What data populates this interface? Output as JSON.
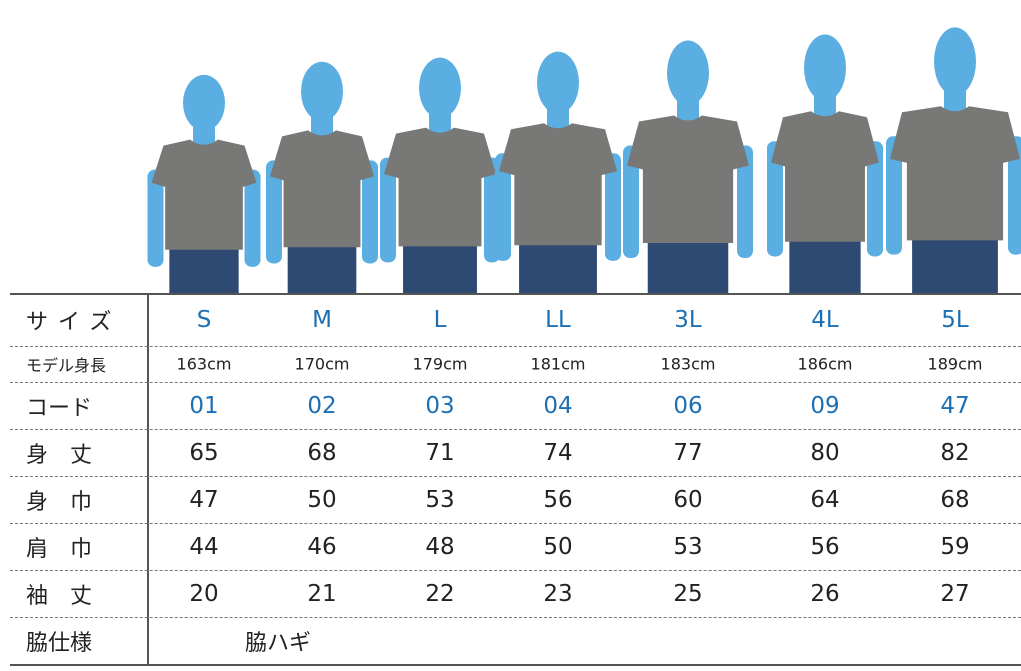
{
  "table": {
    "rows": [
      {
        "label": "サイズ",
        "cells": [
          "S",
          "M",
          "L",
          "LL",
          "3L",
          "4L",
          "5L"
        ]
      },
      {
        "label": "モデル身長",
        "cells": [
          "163cm",
          "170cm",
          "179cm",
          "181cm",
          "183cm",
          "186cm",
          "189cm"
        ]
      },
      {
        "label": "コード",
        "cells": [
          "01",
          "02",
          "03",
          "04",
          "06",
          "09",
          "47"
        ]
      },
      {
        "label": "身　丈",
        "cells": [
          65,
          68,
          71,
          74,
          77,
          80,
          82
        ]
      },
      {
        "label": "身　巾",
        "cells": [
          47,
          50,
          53,
          56,
          60,
          64,
          68
        ]
      },
      {
        "label": "肩　巾",
        "cells": [
          44,
          46,
          48,
          50,
          53,
          56,
          59
        ]
      },
      {
        "label": "袖　丈",
        "cells": [
          20,
          21,
          22,
          23,
          25,
          26,
          27
        ]
      },
      {
        "label": "脇仕様",
        "cells": [
          "脇ハギ"
        ]
      }
    ]
  }
}
